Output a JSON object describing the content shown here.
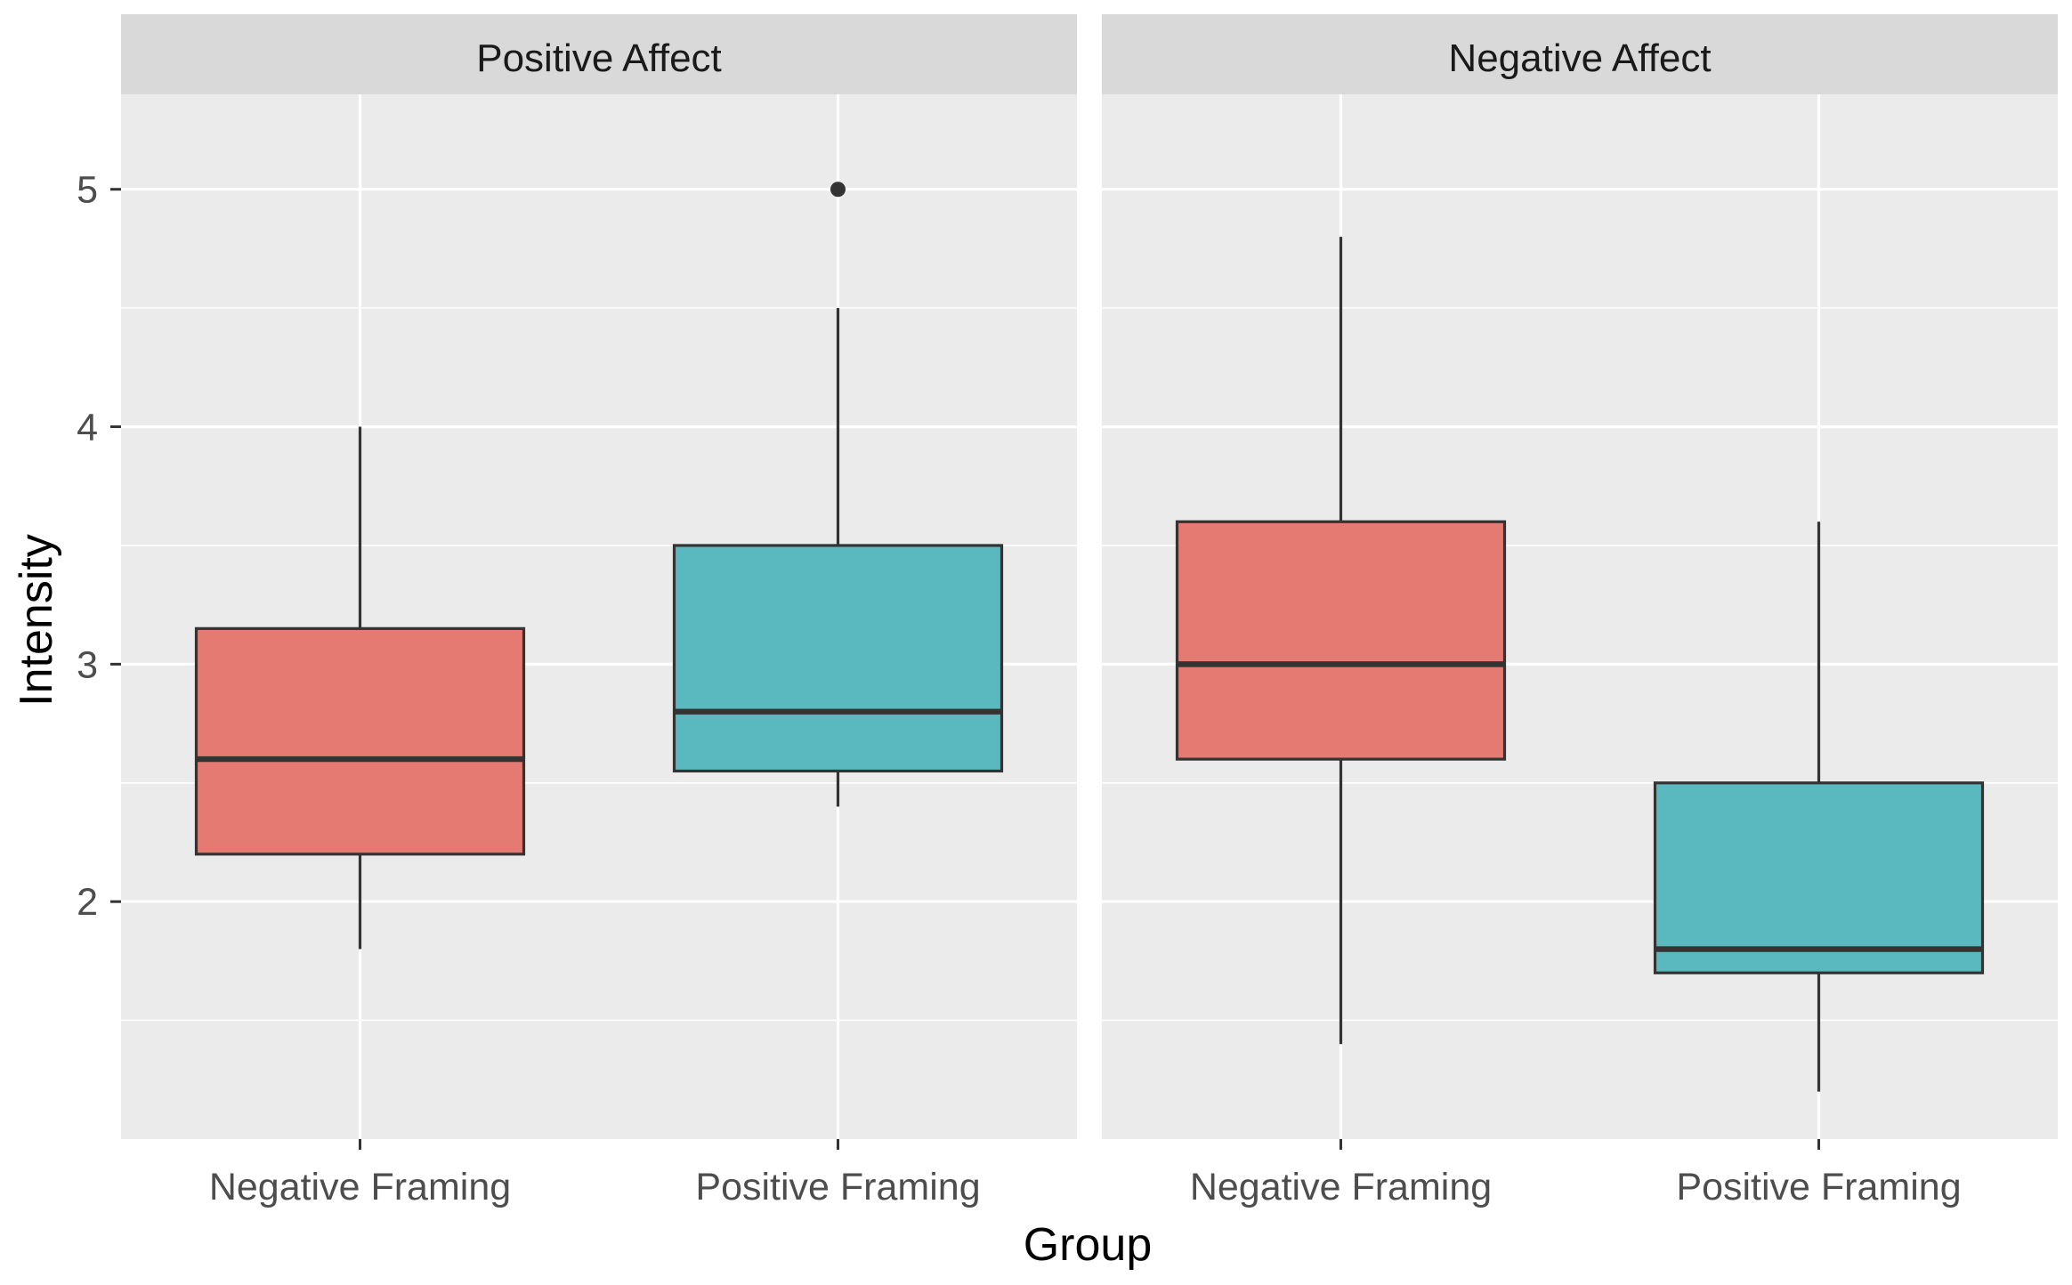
{
  "chart_data": {
    "type": "boxplot",
    "xlabel": "Group",
    "ylabel": "Intensity",
    "ylim": [
      1.0,
      5.4
    ],
    "y_ticks": [
      2,
      3,
      4,
      5
    ],
    "y_tick_labels": [
      "2",
      "3",
      "4",
      "5"
    ],
    "categories": [
      "Negative Framing",
      "Positive Framing"
    ],
    "colors": {
      "Negative Framing": "#E57A73",
      "Positive Framing": "#5AB9BF"
    },
    "panels": [
      {
        "title": "Positive Affect",
        "boxes": [
          {
            "category": "Negative Framing",
            "whisker_low": 1.8,
            "q1": 2.2,
            "median": 2.6,
            "q3": 3.15,
            "whisker_high": 4.0,
            "outliers": []
          },
          {
            "category": "Positive Framing",
            "whisker_low": 2.4,
            "q1": 2.55,
            "median": 2.8,
            "q3": 3.5,
            "whisker_high": 4.5,
            "outliers": [
              5.0
            ]
          }
        ]
      },
      {
        "title": "Negative Affect",
        "boxes": [
          {
            "category": "Negative Framing",
            "whisker_low": 1.4,
            "q1": 2.6,
            "median": 3.0,
            "q3": 3.6,
            "whisker_high": 4.8,
            "outliers": []
          },
          {
            "category": "Positive Framing",
            "whisker_low": 1.2,
            "q1": 1.7,
            "median": 1.8,
            "q3": 2.5,
            "whisker_high": 3.6,
            "outliers": []
          }
        ]
      }
    ]
  }
}
